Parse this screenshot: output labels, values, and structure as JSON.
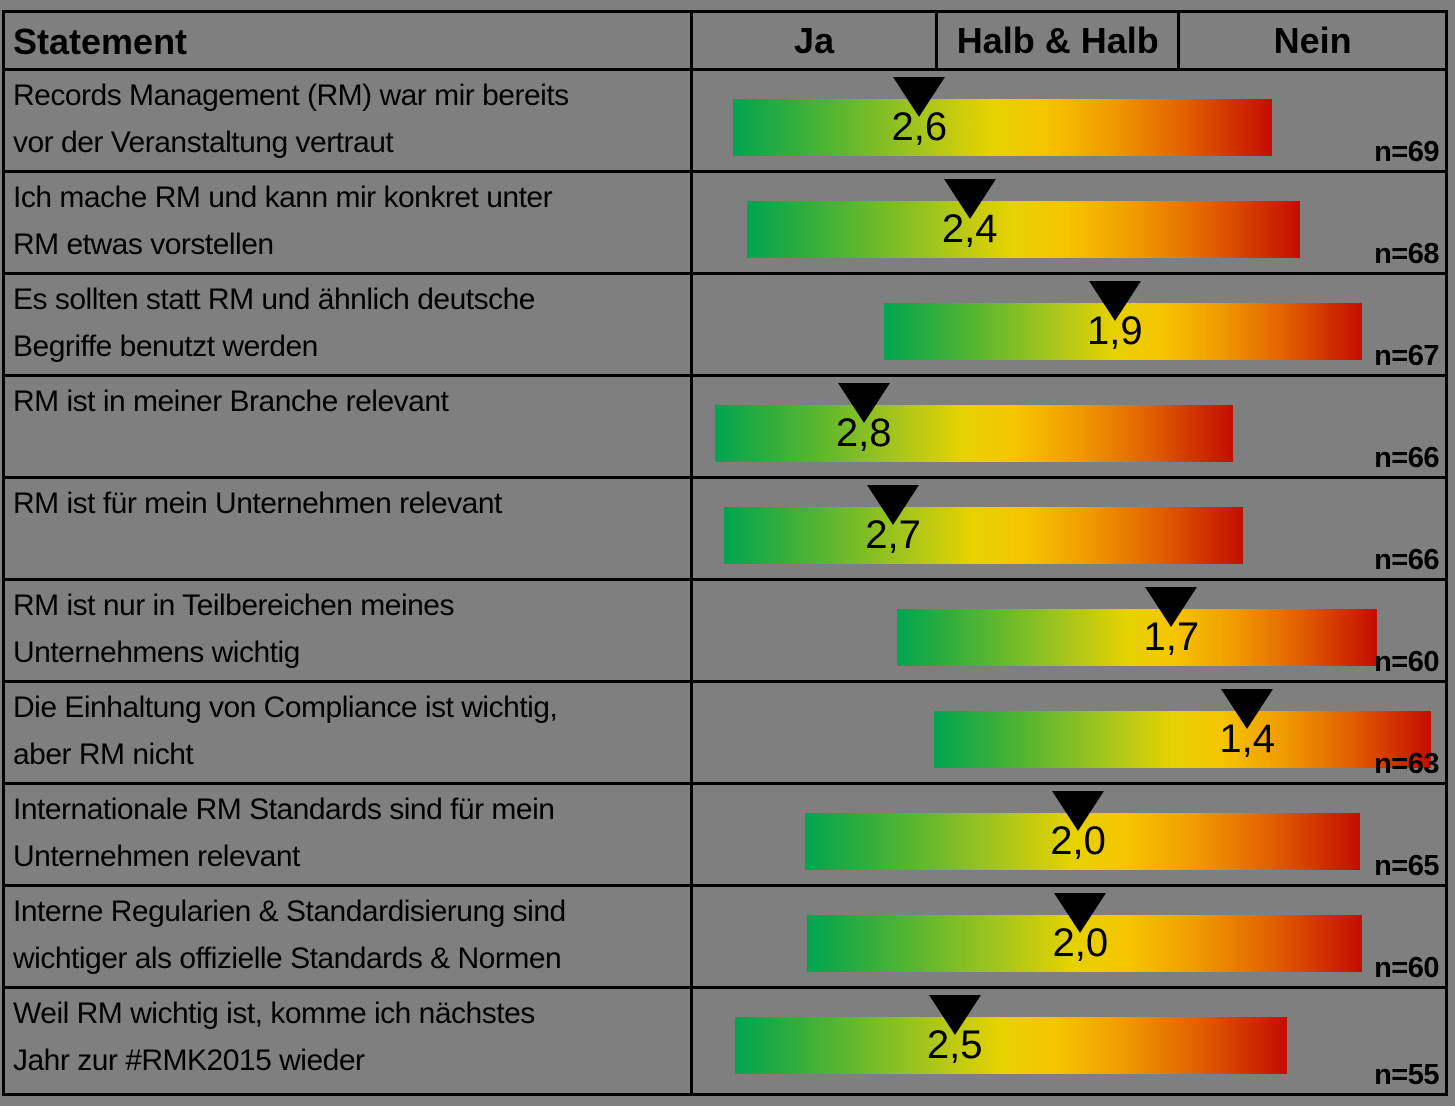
{
  "header": {
    "statement": "Statement",
    "columns": [
      "Ja",
      "Halb & Halb",
      "Nein"
    ]
  },
  "colors": {
    "background": "#7f7f7f",
    "border": "#000000",
    "marker": "#000000",
    "gradient_stops": [
      "#00a551 0%",
      "#52b431 18%",
      "#a6c51c 35%",
      "#e6d200 48%",
      "#f6c400 58%",
      "#f09b00 70%",
      "#e25f00 84%",
      "#c30d00 100%"
    ]
  },
  "chart_data": {
    "type": "bar",
    "title": "",
    "orientation": "horizontal-scale",
    "scale": {
      "column_labels": [
        "Ja",
        "Halb & Halb",
        "Nein"
      ],
      "column_values": [
        3,
        2,
        1
      ],
      "note": "black triangle marks mean rating on a Ja(3) - Halb & Halb(2) - Nein(1) scale"
    },
    "rows": [
      {
        "statement": "Records Management (RM) war mir bereits\nvor der Veranstaltung vertraut",
        "mean": 2.6,
        "value_label": "2,6",
        "n": 69,
        "n_label": "n=69",
        "bar_left_pct": 5.3,
        "bar_width_pct": 71.7,
        "marker_pct": 30.1
      },
      {
        "statement": "Ich mache RM und kann mir konkret unter\nRM etwas vorstellen",
        "mean": 2.4,
        "value_label": "2,4",
        "n": 68,
        "n_label": "n=68",
        "bar_left_pct": 7.2,
        "bar_width_pct": 73.5,
        "marker_pct": 36.8
      },
      {
        "statement": "Es sollten statt RM und ähnlich deutsche\nBegriffe benutzt werden",
        "mean": 1.9,
        "value_label": "1,9",
        "n": 67,
        "n_label": "n=67",
        "bar_left_pct": 25.4,
        "bar_width_pct": 63.6,
        "marker_pct": 56.1
      },
      {
        "statement": "RM ist in meiner Branche relevant",
        "mean": 2.8,
        "value_label": "2,8",
        "n": 66,
        "n_label": "n=66",
        "bar_left_pct": 2.9,
        "bar_width_pct": 68.9,
        "marker_pct": 22.7
      },
      {
        "statement": "RM ist für mein Unternehmen relevant",
        "mean": 2.7,
        "value_label": "2,7",
        "n": 66,
        "n_label": "n=66",
        "bar_left_pct": 4.1,
        "bar_width_pct": 69.0,
        "marker_pct": 26.6
      },
      {
        "statement": "RM ist nur in Teilbereichen meines\nUnternehmens wichtig",
        "mean": 1.7,
        "value_label": "1,7",
        "n": 60,
        "n_label": "n=60",
        "bar_left_pct": 27.1,
        "bar_width_pct": 63.8,
        "marker_pct": 63.6
      },
      {
        "statement": "Die Einhaltung von Compliance ist wichtig,\naber RM nicht",
        "mean": 1.4,
        "value_label": "1,4",
        "n": 63,
        "n_label": "n=63",
        "bar_left_pct": 32.0,
        "bar_width_pct": 66.2,
        "marker_pct": 73.7
      },
      {
        "statement": "Internationale RM Standards sind für mein\nUnternehmen relevant",
        "mean": 2.0,
        "value_label": "2,0",
        "n": 65,
        "n_label": "n=65",
        "bar_left_pct": 14.9,
        "bar_width_pct": 73.8,
        "marker_pct": 51.2
      },
      {
        "statement": "Interne Regularien & Standardisierung sind\nwichtiger als offizielle Standards & Normen",
        "mean": 2.0,
        "value_label": "2,0",
        "n": 60,
        "n_label": "n=60",
        "bar_left_pct": 15.2,
        "bar_width_pct": 73.8,
        "marker_pct": 51.5
      },
      {
        "statement": "Weil RM wichtig ist, komme ich nächstes\nJahr zur #RMK2015 wieder",
        "mean": 2.5,
        "value_label": "2,5",
        "n": 55,
        "n_label": "n=55",
        "bar_left_pct": 5.6,
        "bar_width_pct": 73.4,
        "marker_pct": 34.8
      }
    ]
  }
}
